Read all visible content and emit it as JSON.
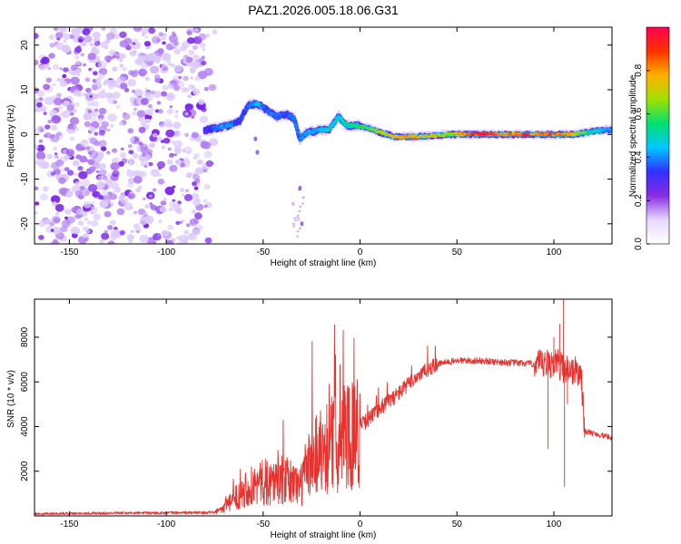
{
  "title": "PAZ1.2026.005.18.06.G31",
  "chart_data": [
    {
      "type": "heatmap",
      "name": "spectrogram",
      "xlabel": "Height of straight line (km)",
      "ylabel": "Frequency (Hz)",
      "xlim": [
        -168,
        130
      ],
      "ylim": [
        -24.5,
        24
      ],
      "x_ticks": [
        -150,
        -100,
        -50,
        0,
        50,
        100
      ],
      "x_tick_labels": [
        "-150",
        "-100",
        "-50",
        "0",
        "50",
        "100"
      ],
      "y_ticks": [
        -20,
        -10,
        0,
        10,
        20
      ],
      "y_tick_labels": [
        "-20",
        "-10",
        "0",
        "10",
        "20"
      ],
      "noise_region": {
        "x_range": [
          -168,
          -78
        ],
        "freq_range": [
          -24.5,
          24
        ],
        "amplitude": 0.1
      },
      "ridge": [
        {
          "x": -80,
          "freq": 1.0,
          "amp": 0.3
        },
        {
          "x": -73,
          "freq": 1.5,
          "amp": 0.38
        },
        {
          "x": -68,
          "freq": 2.0,
          "amp": 0.4
        },
        {
          "x": -62,
          "freq": 3.0,
          "amp": 0.32
        },
        {
          "x": -58,
          "freq": 6.5,
          "amp": 0.35
        },
        {
          "x": -53,
          "freq": 6.8,
          "amp": 0.45
        },
        {
          "x": -48,
          "freq": 5.5,
          "amp": 0.35
        },
        {
          "x": -43,
          "freq": 4.0,
          "amp": 0.38
        },
        {
          "x": -38,
          "freq": 4.5,
          "amp": 0.35
        },
        {
          "x": -34,
          "freq": 3.5,
          "amp": 0.4
        },
        {
          "x": -31,
          "freq": -1.0,
          "amp": 0.38
        },
        {
          "x": -27,
          "freq": 0.5,
          "amp": 0.4
        },
        {
          "x": -22,
          "freq": 0.8,
          "amp": 0.42
        },
        {
          "x": -16,
          "freq": 1.2,
          "amp": 0.5
        },
        {
          "x": -11,
          "freq": 4.0,
          "amp": 0.45
        },
        {
          "x": -7,
          "freq": 2.0,
          "amp": 0.5
        },
        {
          "x": -2,
          "freq": 2.0,
          "amp": 0.55
        },
        {
          "x": 4,
          "freq": 1.5,
          "amp": 0.6
        },
        {
          "x": 10,
          "freq": 0.5,
          "amp": 0.7
        },
        {
          "x": 18,
          "freq": -0.5,
          "amp": 0.75
        },
        {
          "x": 28,
          "freq": -0.5,
          "amp": 0.8
        },
        {
          "x": 38,
          "freq": -0.3,
          "amp": 0.72
        },
        {
          "x": 46,
          "freq": 0.0,
          "amp": 0.62
        },
        {
          "x": 55,
          "freq": 0.0,
          "amp": 0.85
        },
        {
          "x": 65,
          "freq": 0.0,
          "amp": 0.95
        },
        {
          "x": 75,
          "freq": 0.0,
          "amp": 0.8
        },
        {
          "x": 85,
          "freq": 0.0,
          "amp": 0.88
        },
        {
          "x": 95,
          "freq": 0.0,
          "amp": 0.8
        },
        {
          "x": 103,
          "freq": 0.0,
          "amp": 0.85
        },
        {
          "x": 110,
          "freq": 0.0,
          "amp": 0.72
        },
        {
          "x": 118,
          "freq": 0.5,
          "amp": 0.55
        },
        {
          "x": 125,
          "freq": 1.0,
          "amp": 0.45
        },
        {
          "x": 130,
          "freq": 1.0,
          "amp": 0.4
        }
      ],
      "colorbar": {
        "label": "Normalized spectral amplitude",
        "range": [
          0.0,
          1.0
        ],
        "ticks": [
          0.0,
          0.2,
          0.4,
          0.6,
          0.8
        ],
        "tick_labels": [
          "0.0",
          "0.2",
          "0.4",
          "0.6",
          "0.8"
        ],
        "colors": [
          "#ffffff",
          "#e6d8ff",
          "#8a2be2",
          "#3030ff",
          "#00c8ff",
          "#00e070",
          "#a0e000",
          "#ffb000",
          "#ff3000",
          "#ff0050"
        ]
      }
    },
    {
      "type": "line",
      "name": "snr",
      "xlabel": "Height of straight line (km)",
      "ylabel": "SNR (10 * v/v)",
      "xlim": [
        -168,
        130
      ],
      "ylim": [
        0,
        9700
      ],
      "x_ticks": [
        -150,
        -100,
        -50,
        0,
        50,
        100
      ],
      "x_tick_labels": [
        "-150",
        "-100",
        "-50",
        "0",
        "50",
        "100"
      ],
      "y_ticks": [
        2000,
        4000,
        6000,
        8000
      ],
      "y_tick_labels": [
        "2000",
        "4000",
        "6000",
        "8000"
      ],
      "color": "#e8322e",
      "envelope": {
        "x": [
          -168,
          -75,
          -68,
          -60,
          -50,
          -40,
          -30,
          -25,
          -20,
          -10,
          0,
          10,
          20,
          30,
          40,
          50,
          60,
          70,
          80,
          90,
          95,
          100,
          104,
          106,
          110,
          114,
          116,
          120,
          125,
          130
        ],
        "y": [
          100,
          150,
          500,
          1200,
          1500,
          1600,
          1400,
          2700,
          3000,
          3400,
          4000,
          4800,
          5500,
          6300,
          6800,
          6950,
          6950,
          6900,
          6850,
          6800,
          6700,
          6900,
          6700,
          6600,
          6500,
          6400,
          3800,
          3700,
          3600,
          3500
        ]
      },
      "spikes": [
        {
          "x": 100,
          "y": 8000
        },
        {
          "x": 103,
          "y": 8600
        },
        {
          "x": 105,
          "y": 9700
        },
        {
          "x": 105.5,
          "y": 1300
        },
        {
          "x": 97,
          "y": 3000
        },
        {
          "x": 107,
          "y": 5000
        }
      ]
    }
  ]
}
